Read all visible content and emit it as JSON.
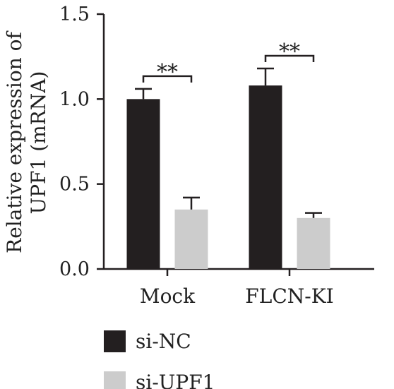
{
  "chart_data": {
    "type": "bar",
    "categories": [
      "Mock",
      "FLCN-KI"
    ],
    "series": [
      {
        "name": "si-NC",
        "values": [
          1.0,
          1.08
        ],
        "errors": [
          0.06,
          0.1
        ],
        "color": "#231f20"
      },
      {
        "name": "si-UPF1",
        "values": [
          0.35,
          0.3
        ],
        "errors": [
          0.07,
          0.03
        ],
        "color": "#cccccc"
      }
    ],
    "ylabel_line1": "Relative expression of",
    "ylabel_line2": "UPF1 (mRNA)",
    "ylim": [
      0,
      1.5
    ],
    "yticks": [
      "0.0",
      "0.5",
      "1.0",
      "1.5"
    ],
    "significance": [
      {
        "category": "Mock",
        "label": "**"
      },
      {
        "category": "FLCN-KI",
        "label": "**"
      }
    ],
    "legend_position": "bottom-left",
    "grid": false
  }
}
